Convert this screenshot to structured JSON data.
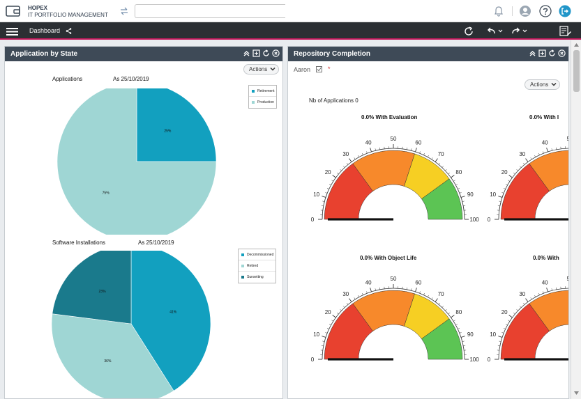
{
  "header": {
    "app_name": "HOPEX",
    "app_subtitle": "IT PORTFOLIO MANAGEMENT",
    "search_placeholder": ""
  },
  "navbar": {
    "dashboard_label": "Dashboard"
  },
  "colors": {
    "teal": "#12a0bf",
    "light_teal": "#9fd6d4",
    "dark_teal": "#1a7a8c",
    "navbar": "#2b2f33",
    "panel_header": "#3e4a57",
    "accent": "#c2185b",
    "gauge_red": "#e8412f",
    "gauge_orange": "#f7892b",
    "gauge_yellow": "#f6cf23",
    "gauge_green": "#5cc454"
  },
  "left_panel": {
    "title": "Application by State",
    "actions_label": "Actions",
    "charts": [
      {
        "label": "Applications",
        "date": "As 25/10/2019",
        "legend": [
          "Retirement",
          "Production"
        ]
      },
      {
        "label": "Software Installations",
        "date": "As 25/10/2019",
        "legend": [
          "Decommissioned",
          "Retired",
          "Sunsetting"
        ]
      }
    ]
  },
  "right_panel": {
    "title": "Repository Completion",
    "user": "Aaron",
    "required_mark": "*",
    "actions_label": "Actions",
    "nb_apps": "Nb of Applications 0",
    "gauge_titles": [
      "0.0% With Evaluation",
      "0.0% With I",
      "0.0% With Object Life",
      "0.0% With"
    ],
    "gauge_ticks": [
      "0",
      "10",
      "20",
      "30",
      "40",
      "50",
      "60",
      "70",
      "80",
      "90",
      "100"
    ]
  },
  "chart_data": [
    {
      "type": "pie",
      "title": "Applications",
      "categories": [
        "Retirement",
        "Production"
      ],
      "values": [
        25,
        75
      ],
      "labels": [
        "25%",
        "75%"
      ],
      "legend_position": "top-right"
    },
    {
      "type": "pie",
      "title": "Software Installations",
      "categories": [
        "Decommissioned",
        "Retired",
        "Sunsetting"
      ],
      "values": [
        41,
        36,
        23
      ],
      "labels": [
        "41%",
        "36%",
        "23%"
      ],
      "legend_position": "top-right"
    },
    {
      "type": "gauge",
      "title": "0.0% With Evaluation",
      "value": 0,
      "range": [
        0,
        100
      ]
    },
    {
      "type": "gauge",
      "title": "0.0% With Object Life",
      "value": 0,
      "range": [
        0,
        100
      ]
    }
  ]
}
